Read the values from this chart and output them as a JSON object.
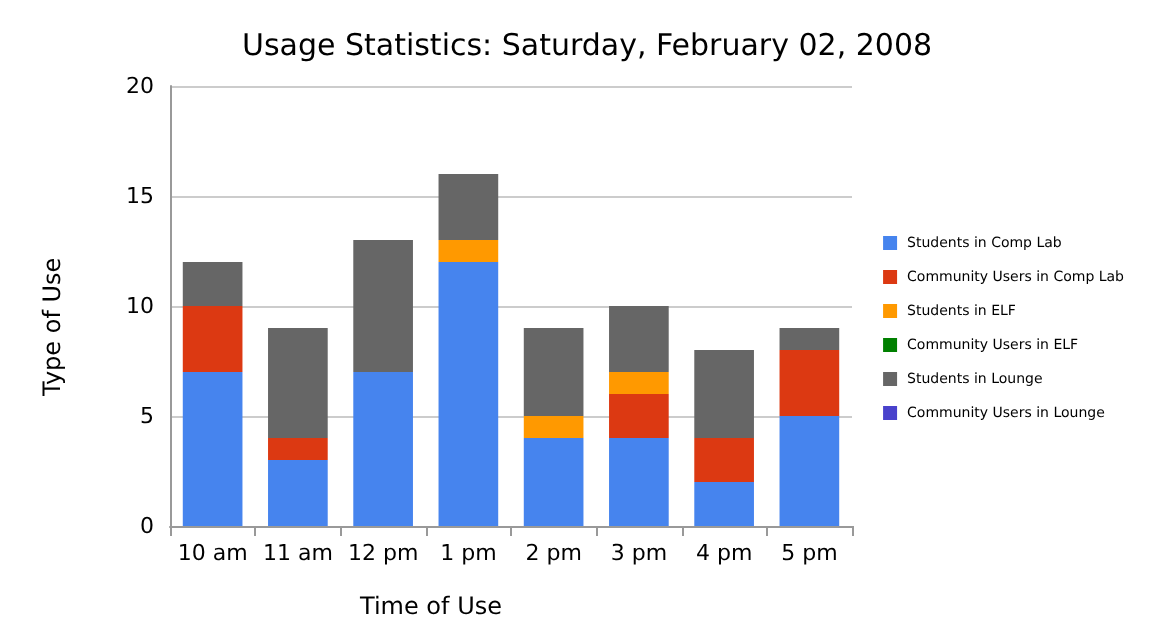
{
  "chart_data": {
    "type": "bar",
    "title": "Usage Statistics: Saturday, February 02, 2008",
    "xlabel": "Time of Use",
    "ylabel": "Type of Use",
    "categories": [
      "10 am",
      "11 am",
      "12 pm",
      "1 pm",
      "2 pm",
      "3 pm",
      "4 pm",
      "5 pm"
    ],
    "stacked": true,
    "ylim": [
      0,
      20
    ],
    "yticks": [
      0,
      5,
      10,
      15,
      20
    ],
    "grid": "y",
    "legend": "right",
    "series": [
      {
        "name": "Students in Comp Lab",
        "color": "#4684ee",
        "values": [
          7,
          3,
          7,
          12,
          4,
          4,
          2,
          5
        ]
      },
      {
        "name": "Community Users in Comp Lab",
        "color": "#dc3912",
        "values": [
          3,
          1,
          0,
          0,
          0,
          2,
          2,
          3
        ]
      },
      {
        "name": "Students in ELF",
        "color": "#ff9900",
        "values": [
          0,
          0,
          0,
          1,
          1,
          1,
          0,
          0
        ]
      },
      {
        "name": "Community Users in ELF",
        "color": "#008000",
        "values": [
          0,
          0,
          0,
          0,
          0,
          0,
          0,
          0
        ]
      },
      {
        "name": "Students in Lounge",
        "color": "#666666",
        "values": [
          2,
          5,
          6,
          3,
          4,
          3,
          4,
          1
        ]
      },
      {
        "name": "Community Users in Lounge",
        "color": "#4942cc",
        "values": [
          0,
          0,
          0,
          0,
          0,
          0,
          0,
          0
        ]
      }
    ]
  }
}
